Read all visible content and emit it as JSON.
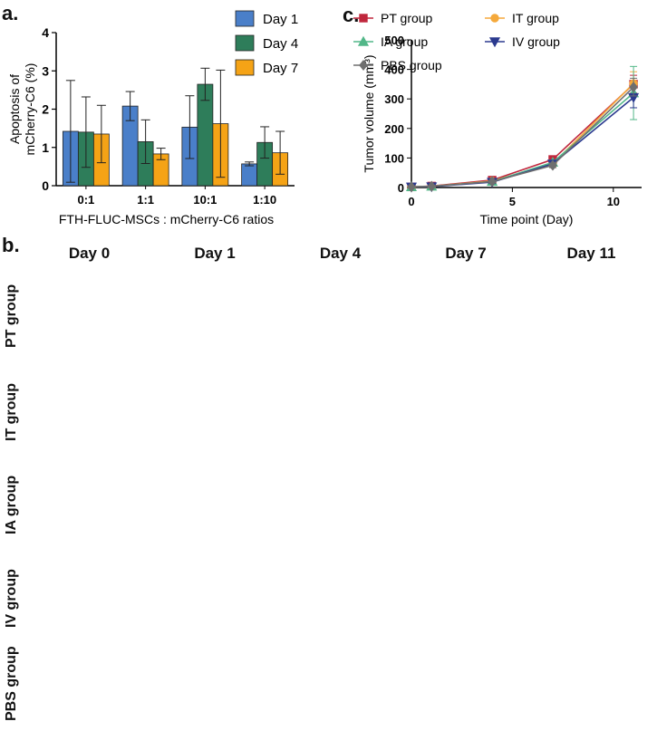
{
  "panels": {
    "a": "a.",
    "b": "b.",
    "c": "c."
  },
  "chart_data": [
    {
      "type": "bar",
      "panel": "a.",
      "ylabel": "Apoptosis of mCherry-C6 (%)",
      "ylabel_line1": "Apoptosis of",
      "ylabel_line2": "mCherry-C6 (%)",
      "xlabel": "FTH-FLUC-MSCs : mCherry-C6 ratios",
      "categories": [
        "0:1",
        "1:1",
        "10:1",
        "1:10"
      ],
      "ylim": [
        0,
        4
      ],
      "yticks": [
        "0",
        "1",
        "2",
        "3",
        "4"
      ],
      "legend_position": "top-right",
      "series": [
        {
          "name": "Day 1",
          "color": "#4a7fc9",
          "values": [
            1.42,
            2.08,
            1.53,
            0.57
          ],
          "err": [
            1.33,
            0.38,
            0.82,
            0.05
          ]
        },
        {
          "name": "Day 4",
          "color": "#2e7d5a",
          "values": [
            1.4,
            1.15,
            2.65,
            1.13
          ],
          "err": [
            0.92,
            0.57,
            0.42,
            0.41
          ]
        },
        {
          "name": "Day 7",
          "color": "#f5a316",
          "values": [
            1.35,
            0.83,
            1.62,
            0.86
          ],
          "err": [
            0.75,
            0.15,
            1.4,
            0.56
          ]
        }
      ]
    },
    {
      "type": "line",
      "panel": "c.",
      "ylabel": "Tumor volume (mm³)",
      "xlabel": "Time point (Day)",
      "x": [
        0,
        1,
        4,
        7,
        11
      ],
      "xlim": [
        0,
        11.4
      ],
      "ylim": [
        0,
        500
      ],
      "xticks": [
        "0",
        "5",
        "10"
      ],
      "yticks": [
        "0",
        "100",
        "200",
        "300",
        "400",
        "500"
      ],
      "legend_position": "top",
      "series": [
        {
          "name": "PT group",
          "color": "#c0273d",
          "marker": "square",
          "values": [
            2,
            5,
            25,
            95,
            350
          ],
          "err": [
            2,
            2,
            4,
            8,
            30
          ]
        },
        {
          "name": "IT group",
          "color": "#f5a93b",
          "marker": "circle",
          "values": [
            2,
            4,
            22,
            80,
            352
          ],
          "err": [
            2,
            2,
            4,
            12,
            40
          ]
        },
        {
          "name": "IA group",
          "color": "#52b788",
          "marker": "triangle-up",
          "values": [
            2,
            4,
            20,
            85,
            320
          ],
          "err": [
            2,
            2,
            4,
            8,
            90
          ]
        },
        {
          "name": "IV group",
          "color": "#2b3a8f",
          "marker": "triangle-down",
          "values": [
            2,
            3,
            18,
            80,
            305
          ],
          "err": [
            2,
            2,
            4,
            8,
            35
          ]
        },
        {
          "name": "PBS group",
          "color": "#6f6f6f",
          "marker": "diamond",
          "values": [
            2,
            4,
            20,
            75,
            340
          ],
          "err": [
            2,
            2,
            3,
            8,
            30
          ]
        }
      ]
    }
  ],
  "mri": {
    "columns": [
      "Day 0",
      "Day 1",
      "Day 4",
      "Day 7",
      "Day 11"
    ],
    "rows": [
      "PT group",
      "IT group",
      "IA group",
      "IV group",
      "PBS group"
    ]
  }
}
